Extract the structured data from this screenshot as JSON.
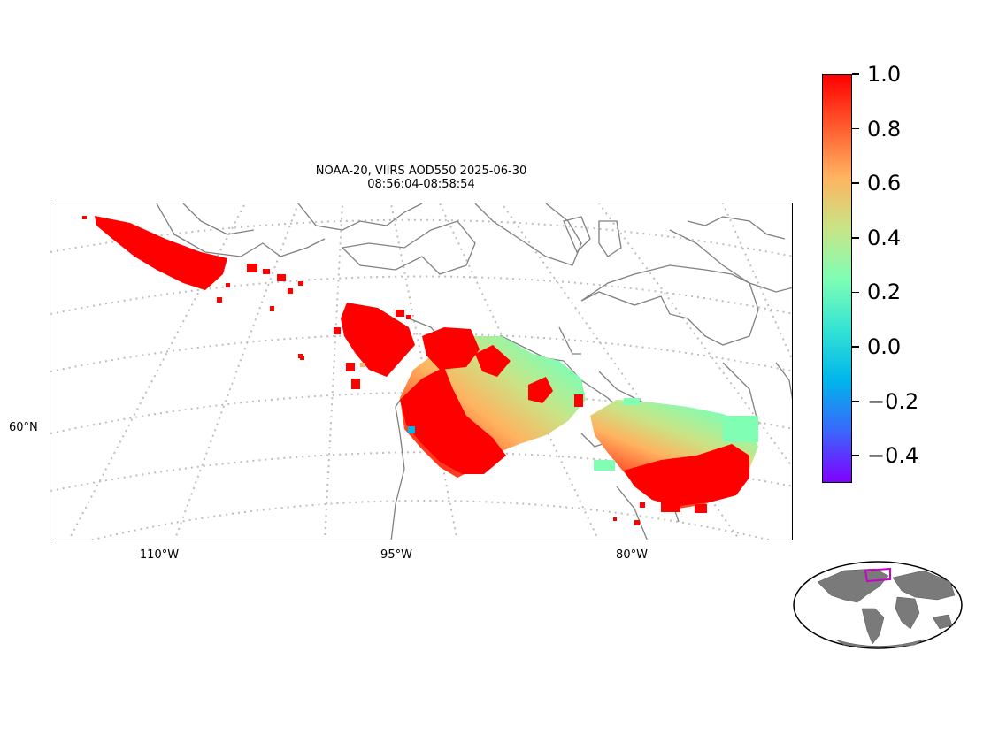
{
  "figure": {
    "title_line1": "NOAA-20, VIIRS AOD550 2025-06-30",
    "title_line2": "08:56:04-08:58:54"
  },
  "map": {
    "projection": "lambert-conformal (curved graticule)",
    "graticule_style": "dotted light grey",
    "coastline_color": "#808080",
    "lon_labels": [
      "110°W",
      "95°W",
      "80°W"
    ],
    "lat_labels": [
      "60°N"
    ]
  },
  "colorbar": {
    "colormap": "rainbow",
    "min": -0.5,
    "max": 1.0,
    "colors": [
      "#8000ff",
      "#3a67fb",
      "#00b5eb",
      "#34e3d3",
      "#7ffeb4",
      "#c9e486",
      "#ffb360",
      "#ff5a2e",
      "#ff0000"
    ],
    "ticks": [
      {
        "value": 1.0,
        "label": "1.0"
      },
      {
        "value": 0.8,
        "label": "0.8"
      },
      {
        "value": 0.6,
        "label": "0.6"
      },
      {
        "value": 0.4,
        "label": "0.4"
      },
      {
        "value": 0.2,
        "label": "0.2"
      },
      {
        "value": 0.0,
        "label": "0.0"
      },
      {
        "value": -0.2,
        "label": "−0.2"
      },
      {
        "value": -0.4,
        "label": "−0.4"
      }
    ]
  },
  "inset": {
    "description_icon": "globe-locator-icon",
    "land_color": "#7a7a7a",
    "highlight_color": "#cc00cc"
  }
}
